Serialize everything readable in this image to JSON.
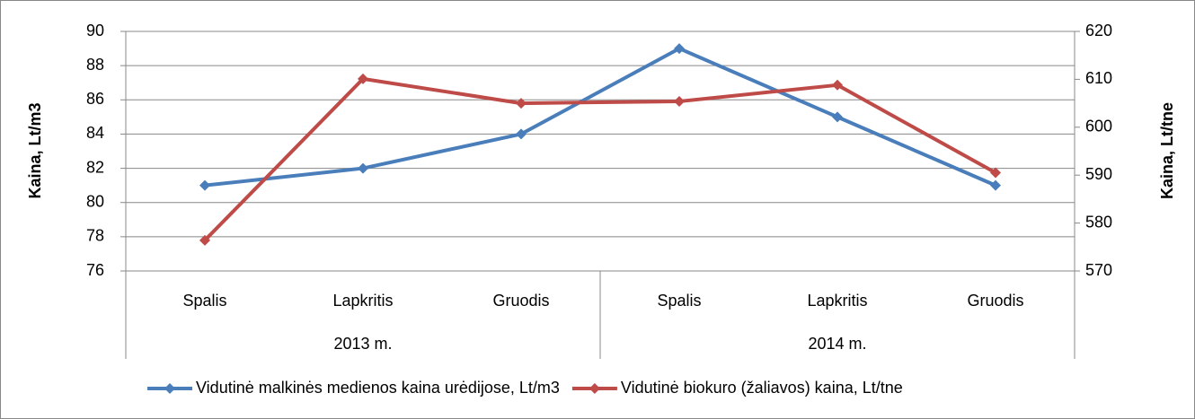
{
  "chart_data": {
    "type": "line",
    "categories": [
      "Spalis",
      "Lapkritis",
      "Gruodis",
      "Spalis",
      "Lapkritis",
      "Gruodis"
    ],
    "category_groups": [
      "2013 m.",
      "2014 m."
    ],
    "ylabel": "Kaina, Lt/m3",
    "y2label": "Kaina, Lt/tne",
    "ylim": [
      76,
      90
    ],
    "yticks": [
      76,
      78,
      80,
      82,
      84,
      86,
      88,
      90
    ],
    "y2lim": [
      570,
      620
    ],
    "y2ticks": [
      570,
      580,
      590,
      600,
      610,
      620
    ],
    "grid": true,
    "legend": "bottom",
    "series": [
      {
        "name": "Vidutinė malkinės medienos kaina urėdijose, Lt/m3",
        "color": "#4a7ebb",
        "values": [
          81,
          82,
          84,
          89,
          85,
          81
        ]
      },
      {
        "name": "Vidutinė biokuro (žaliavos) kaina, Lt/tne",
        "color": "#be4b48",
        "axis": "y2",
        "values": [
          576.4,
          610.1,
          605.0,
          605.4,
          608.8,
          590.5
        ]
      }
    ]
  }
}
